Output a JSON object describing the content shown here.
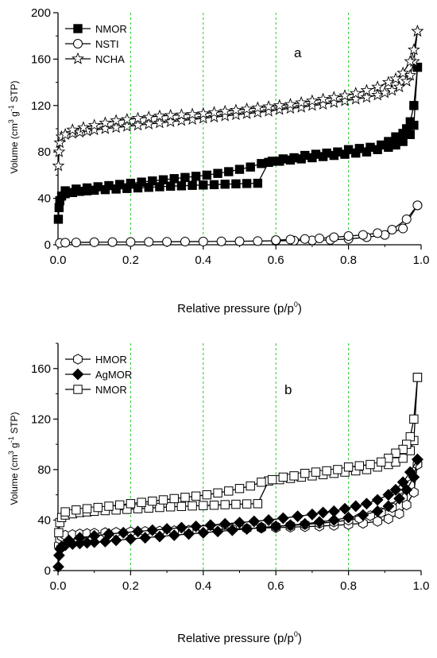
{
  "chart_data": [
    {
      "type": "line",
      "panel_label": "a",
      "xlabel": "Relative pressure (p/p",
      "xlabel_sup": "0",
      "xlabel_end": ")",
      "ylabel_parts": [
        "Volume (cm",
        "3",
        " g",
        "-1",
        " STP)"
      ],
      "xlim": [
        0,
        1.0
      ],
      "ylim": [
        0,
        200
      ],
      "x_ticks": [
        0.0,
        0.2,
        0.4,
        0.6,
        0.8,
        1.0
      ],
      "x_tick_labels": [
        "0.0",
        "0.2",
        "0.4",
        "0.6",
        "0.8",
        "1.0"
      ],
      "y_ticks": [
        0,
        40,
        80,
        120,
        160,
        200
      ],
      "y_tick_labels": [
        "0",
        "40",
        "80",
        "120",
        "160",
        "200"
      ],
      "vertical_gridlines": [
        0.2,
        0.4,
        0.6,
        0.8
      ],
      "gridline_color": "#22cc22",
      "legend_position": "top-left",
      "series": [
        {
          "name": "NMOR",
          "marker": "square-filled",
          "adsorption": {
            "x": [
              0.001,
              0.003,
              0.005,
              0.01,
              0.02,
              0.04,
              0.06,
              0.08,
              0.1,
              0.13,
              0.16,
              0.19,
              0.22,
              0.25,
              0.28,
              0.31,
              0.34,
              0.37,
              0.4,
              0.43,
              0.46,
              0.49,
              0.52,
              0.55,
              0.58,
              0.61,
              0.64,
              0.67,
              0.7,
              0.73,
              0.76,
              0.79,
              0.82,
              0.85,
              0.88,
              0.91,
              0.93,
              0.95,
              0.97,
              0.98,
              0.99
            ],
            "y": [
              22,
              32,
              38,
              42,
              44,
              45,
              46,
              46.5,
              47,
              47.5,
              48,
              48.5,
              49,
              49.5,
              50,
              50.5,
              50.8,
              51.2,
              51.5,
              51.8,
              52.2,
              52.5,
              52.8,
              53,
              71,
              72,
              73,
              74,
              75,
              76,
              77,
              78,
              79,
              80,
              82,
              84,
              86,
              89,
              95,
              103,
              153
            ]
          },
          "desorption": {
            "x": [
              0.99,
              0.98,
              0.97,
              0.96,
              0.95,
              0.93,
              0.91,
              0.89,
              0.86,
              0.83,
              0.8,
              0.77,
              0.74,
              0.71,
              0.68,
              0.65,
              0.62,
              0.59,
              0.56,
              0.53,
              0.5,
              0.47,
              0.44,
              0.41,
              0.38,
              0.35,
              0.32,
              0.29,
              0.26,
              0.23,
              0.2,
              0.17,
              0.14,
              0.11,
              0.08,
              0.05,
              0.02
            ],
            "y": [
              153,
              120,
              106,
              100,
              96,
              93,
              89,
              86,
              84,
              83,
              82,
              80,
              79,
              78,
              77,
              75,
              74,
              72,
              70,
              67,
              65,
              63,
              61.5,
              60,
              59,
              58,
              57,
              56,
              55,
              54,
              53,
              52,
              51,
              50,
              49,
              48,
              46.5
            ]
          }
        },
        {
          "name": "NSTI",
          "marker": "circle-open",
          "adsorption": {
            "x": [
              0.005,
              0.02,
              0.05,
              0.1,
              0.15,
              0.2,
              0.25,
              0.3,
              0.35,
              0.4,
              0.45,
              0.5,
              0.55,
              0.6,
              0.65,
              0.7,
              0.75,
              0.8,
              0.85,
              0.9,
              0.95,
              0.99
            ],
            "y": [
              1.5,
              1.8,
              2,
              2.2,
              2.3,
              2.4,
              2.5,
              2.6,
              2.7,
              2.8,
              2.9,
              3,
              3.2,
              3.4,
              3.6,
              3.8,
              4.2,
              5,
              6.5,
              8.5,
              14,
              34
            ]
          },
          "desorption": {
            "x": [
              0.99,
              0.96,
              0.92,
              0.88,
              0.84,
              0.8,
              0.76,
              0.72,
              0.68,
              0.64,
              0.6
            ],
            "y": [
              34,
              22,
              13,
              10,
              8.5,
              7.5,
              6.5,
              5.5,
              5,
              4.5,
              4
            ]
          }
        },
        {
          "name": "NCHA",
          "marker": "star-open",
          "adsorption": {
            "x": [
              0.001,
              0.003,
              0.005,
              0.01,
              0.02,
              0.04,
              0.06,
              0.08,
              0.1,
              0.13,
              0.16,
              0.19,
              0.22,
              0.25,
              0.28,
              0.31,
              0.34,
              0.37,
              0.4,
              0.43,
              0.46,
              0.49,
              0.52,
              0.55,
              0.58,
              0.61,
              0.64,
              0.67,
              0.7,
              0.73,
              0.76,
              0.79,
              0.82,
              0.85,
              0.88,
              0.9,
              0.92,
              0.94,
              0.96,
              0.97,
              0.98,
              0.99
            ],
            "y": [
              68,
              80,
              88,
              93,
              95,
              96,
              97,
              98,
              99,
              100,
              101,
              102,
              103,
              104,
              105,
              106,
              107,
              108,
              109,
              110,
              111,
              112,
              113,
              114,
              115,
              116.5,
              117.5,
              118.5,
              120,
              121,
              122.5,
              124,
              125.5,
              127,
              129,
              131,
              133,
              136,
              141,
              146,
              158,
              184
            ]
          },
          "desorption": {
            "x": [
              0.99,
              0.98,
              0.97,
              0.95,
              0.93,
              0.91,
              0.88,
              0.85,
              0.82,
              0.79,
              0.76,
              0.73,
              0.7,
              0.67,
              0.64,
              0.61,
              0.58,
              0.55,
              0.52,
              0.49,
              0.46,
              0.43,
              0.4,
              0.37,
              0.34,
              0.31,
              0.28,
              0.25,
              0.22,
              0.19,
              0.16,
              0.13,
              0.1,
              0.07,
              0.04
            ],
            "y": [
              184,
              168,
              158,
              148,
              143,
              140,
              136,
              133,
              130.5,
              128.5,
              127,
              125.5,
              124,
              122.5,
              121,
              120,
              119,
              118,
              117,
              116,
              115,
              114,
              113,
              112.5,
              112,
              111.5,
              111,
              110,
              109,
              108,
              107,
              105,
              103,
              101,
              99
            ]
          }
        }
      ]
    },
    {
      "type": "line",
      "panel_label": "b",
      "xlabel": "Relative pressure (p/p",
      "xlabel_sup": "0",
      "xlabel_end": ")",
      "ylabel_parts": [
        "Volume (cm",
        "3",
        " g",
        "-1",
        " STP)"
      ],
      "xlim": [
        0,
        1.0
      ],
      "ylim": [
        0,
        180
      ],
      "x_ticks": [
        0.0,
        0.2,
        0.4,
        0.6,
        0.8,
        1.0
      ],
      "x_tick_labels": [
        "0.0",
        "0.2",
        "0.4",
        "0.6",
        "0.8",
        "1.0"
      ],
      "y_ticks": [
        0,
        40,
        80,
        120,
        160
      ],
      "y_tick_labels": [
        "0",
        "40",
        "80",
        "120",
        "160"
      ],
      "vertical_gridlines": [
        0.2,
        0.4,
        0.6,
        0.8
      ],
      "gridline_color": "#22cc22",
      "legend_position": "top-left",
      "series": [
        {
          "name": "HMOR",
          "marker": "hexagon-open",
          "adsorption": {
            "x": [
              0.002,
              0.005,
              0.01,
              0.02,
              0.04,
              0.06,
              0.08,
              0.1,
              0.13,
              0.16,
              0.2,
              0.24,
              0.28,
              0.32,
              0.36,
              0.4,
              0.44,
              0.48,
              0.52,
              0.56,
              0.6,
              0.64,
              0.68,
              0.72,
              0.76,
              0.8,
              0.84,
              0.88,
              0.91,
              0.94,
              0.96,
              0.98,
              0.99
            ],
            "y": [
              20,
              25,
              27,
              28,
              28.5,
              29,
              29.3,
              29.6,
              30,
              30.3,
              30.7,
              31,
              31.3,
              31.6,
              32,
              32.3,
              32.6,
              33,
              33.3,
              33.7,
              34,
              34.4,
              34.8,
              35.2,
              35.8,
              36.5,
              37.5,
              39,
              41,
              45,
              52,
              62,
              84
            ]
          },
          "desorption": {
            "x": [
              0.99,
              0.97,
              0.95,
              0.92,
              0.89,
              0.86,
              0.83,
              0.8,
              0.76,
              0.72,
              0.68,
              0.64,
              0.6,
              0.56
            ],
            "y": [
              84,
              68,
              58,
              50,
              46,
              43.5,
              41.5,
              40,
              38.5,
              37.5,
              36.5,
              35.7,
              35,
              34.3
            ]
          }
        },
        {
          "name": "AgMOR",
          "marker": "diamond-filled",
          "adsorption": {
            "x": [
              0.001,
              0.003,
              0.006,
              0.01,
              0.02,
              0.04,
              0.06,
              0.08,
              0.1,
              0.13,
              0.16,
              0.2,
              0.24,
              0.28,
              0.32,
              0.36,
              0.4,
              0.44,
              0.48,
              0.52,
              0.56,
              0.6,
              0.64,
              0.68,
              0.72,
              0.76,
              0.8,
              0.84,
              0.88,
              0.91,
              0.94,
              0.96,
              0.98,
              0.99
            ],
            "y": [
              3,
              12,
              17,
              19,
              20,
              21,
              21.5,
              22,
              22.5,
              23,
              24,
              25,
              26,
              27,
              28,
              29,
              30,
              31,
              32,
              33,
              34,
              35,
              36,
              37,
              38.5,
              40,
              42,
              44,
              47,
              51,
              57,
              64,
              74,
              88
            ]
          },
          "desorption": {
            "x": [
              0.99,
              0.97,
              0.95,
              0.93,
              0.91,
              0.88,
              0.85,
              0.82,
              0.79,
              0.76,
              0.73,
              0.7,
              0.66,
              0.62,
              0.58,
              0.54,
              0.5,
              0.46,
              0.42,
              0.38,
              0.34,
              0.3,
              0.26,
              0.22,
              0.18,
              0.14,
              0.1,
              0.06,
              0.03
            ],
            "y": [
              88,
              78,
              70,
              64,
              60,
              56,
              53,
              51,
              49,
              47,
              46,
              44.5,
              43,
              41.5,
              40,
              39,
              38,
              37,
              36,
              35,
              34,
              33,
              32,
              31,
              30,
              29,
              27.5,
              26,
              24
            ]
          }
        },
        {
          "name": "NMOR",
          "marker": "square-open",
          "adsorption": {
            "x": [
              0.002,
              0.005,
              0.01,
              0.02,
              0.04,
              0.06,
              0.08,
              0.1,
              0.13,
              0.16,
              0.19,
              0.22,
              0.25,
              0.28,
              0.31,
              0.34,
              0.37,
              0.4,
              0.43,
              0.46,
              0.49,
              0.52,
              0.55,
              0.58,
              0.61,
              0.64,
              0.67,
              0.7,
              0.73,
              0.76,
              0.79,
              0.82,
              0.85,
              0.88,
              0.91,
              0.93,
              0.95,
              0.97,
              0.98,
              0.99
            ],
            "y": [
              30,
              38,
              42,
              44,
              45,
              46,
              46.5,
              47,
              47.5,
              48,
              48.5,
              49,
              49.5,
              50,
              50.5,
              50.8,
              51.2,
              51.5,
              51.8,
              52.2,
              52.5,
              52.8,
              53,
              71,
              72,
              73,
              74,
              75,
              76,
              77,
              78,
              79,
              80,
              82,
              84,
              86,
              89,
              95,
              103,
              153
            ]
          },
          "desorption": {
            "x": [
              0.99,
              0.98,
              0.97,
              0.96,
              0.95,
              0.93,
              0.91,
              0.89,
              0.86,
              0.83,
              0.8,
              0.77,
              0.74,
              0.71,
              0.68,
              0.65,
              0.62,
              0.59,
              0.56,
              0.53,
              0.5,
              0.47,
              0.44,
              0.41,
              0.38,
              0.35,
              0.32,
              0.29,
              0.26,
              0.23,
              0.2,
              0.17,
              0.14,
              0.11,
              0.08,
              0.05,
              0.02
            ],
            "y": [
              153,
              120,
              106,
              100,
              96,
              93,
              89,
              86,
              84,
              83,
              82,
              80,
              79,
              78,
              77,
              75,
              74,
              72,
              70,
              67,
              65,
              63,
              61.5,
              60,
              59,
              58,
              57,
              56,
              55,
              54,
              53,
              52,
              51,
              50,
              49,
              48,
              46.5
            ]
          }
        }
      ]
    }
  ]
}
